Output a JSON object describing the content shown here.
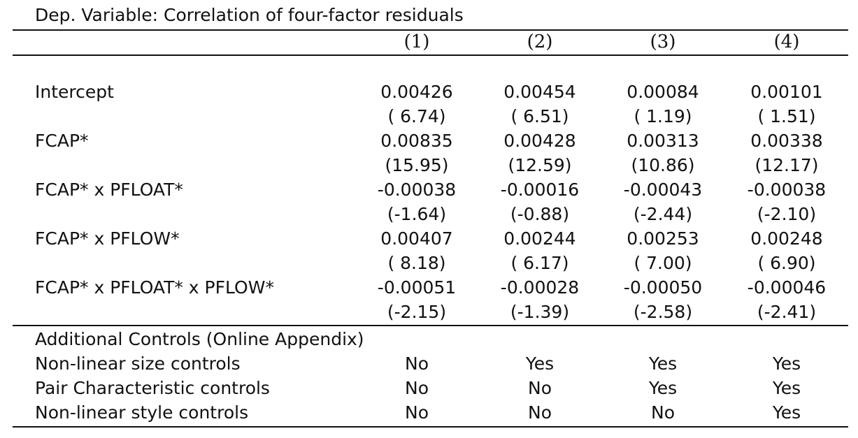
{
  "title": "Dep. Variable: Correlation of four-factor residuals",
  "columns": [
    "(1)",
    "(2)",
    "(3)",
    "(4)"
  ],
  "coefficients": [
    {
      "label": "Intercept",
      "estimates": [
        "0.00426",
        "0.00454",
        "0.00084",
        "0.00101"
      ],
      "tstats": [
        "( 6.74)",
        "( 6.51)",
        "( 1.19)",
        "( 1.51)"
      ]
    },
    {
      "label": "FCAP*",
      "estimates": [
        "0.00835",
        "0.00428",
        "0.00313",
        "0.00338"
      ],
      "tstats": [
        "(15.95)",
        "(12.59)",
        "(10.86)",
        "(12.17)"
      ]
    },
    {
      "label": "FCAP* x PFLOAT*",
      "estimates": [
        "-0.00038",
        "-0.00016",
        "-0.00043",
        "-0.00038"
      ],
      "tstats": [
        "(-1.64)",
        "(-0.88)",
        "(-2.44)",
        "(-2.10)"
      ]
    },
    {
      "label": "FCAP* x PFLOW*",
      "estimates": [
        "0.00407",
        "0.00244",
        "0.00253",
        "0.00248"
      ],
      "tstats": [
        "( 8.18)",
        "( 6.17)",
        "( 7.00)",
        "( 6.90)"
      ]
    },
    {
      "label": "FCAP* x PFLOAT* x PFLOW*",
      "estimates": [
        "-0.00051",
        "-0.00028",
        "-0.00050",
        "-0.00046"
      ],
      "tstats": [
        "(-2.15)",
        "(-1.39)",
        "(-2.58)",
        "(-2.41)"
      ]
    }
  ],
  "controls_header": "Additional Controls (Online Appendix)",
  "controls": [
    {
      "label": "Non-linear size controls",
      "values": [
        "No",
        "Yes",
        "Yes",
        "Yes"
      ]
    },
    {
      "label": "Pair Characteristic controls",
      "values": [
        "No",
        "No",
        "Yes",
        "Yes"
      ]
    },
    {
      "label": "Non-linear style controls",
      "values": [
        "No",
        "No",
        "No",
        "Yes"
      ]
    }
  ]
}
